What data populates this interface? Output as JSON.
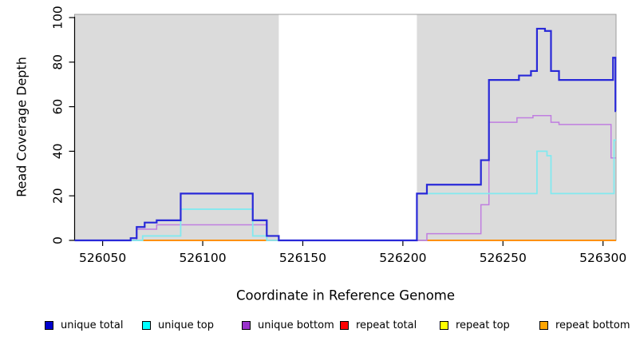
{
  "figure": {
    "background": "#ffffff"
  },
  "chart_data": {
    "type": "line",
    "step": true,
    "title": "",
    "xlabel": "Coordinate in Reference Genome",
    "ylabel": "Read Coverage Depth",
    "xlim": [
      526036,
      526306.5
    ],
    "ylim": [
      0,
      100
    ],
    "x_ticks": [
      526050,
      526100,
      526150,
      526200,
      526250,
      526300
    ],
    "y_ticks": [
      0,
      20,
      40,
      60,
      80,
      100
    ],
    "grid": false,
    "legend_position": "bottom",
    "axis_color": "#000000",
    "box_color": "#9c9c9c",
    "shaded_regions": [
      {
        "x0": 526036,
        "x1": 526138,
        "color": "#dbdbdb"
      },
      {
        "x0": 526207,
        "x1": 526306.5,
        "color": "#dbdbdb"
      }
    ],
    "series": [
      {
        "name": "unique total",
        "swatch": "#0000cd",
        "stroke": "#2828d8",
        "width": 2.2,
        "segments": [
          [
            [
              526036,
              0
            ],
            [
              526064,
              1
            ],
            [
              526067,
              6
            ],
            [
              526071,
              8
            ],
            [
              526077,
              9
            ],
            [
              526089,
              21
            ],
            [
              526125,
              9
            ],
            [
              526132,
              2
            ],
            [
              526138,
              0
            ],
            [
              526207,
              21
            ],
            [
              526212,
              25
            ],
            [
              526239,
              36
            ],
            [
              526243,
              72
            ],
            [
              526258,
              74
            ],
            [
              526264,
              76
            ],
            [
              526267,
              95
            ],
            [
              526271,
              94
            ],
            [
              526274,
              76
            ],
            [
              526278,
              72
            ],
            [
              526305,
              82
            ],
            [
              526306.2,
              58
            ],
            [
              526306.5,
              58
            ]
          ]
        ]
      },
      {
        "name": "unique top",
        "swatch": "#00ffff",
        "stroke": "#82e9ef",
        "width": 1.8,
        "segments": [
          [
            [
              526036,
              0
            ],
            [
              526070,
              2
            ],
            [
              526089,
              14
            ],
            [
              526125,
              2
            ],
            [
              526132,
              0
            ],
            [
              526207,
              21
            ],
            [
              526267,
              40
            ],
            [
              526272,
              38
            ],
            [
              526274,
              21
            ],
            [
              526305.5,
              45
            ],
            [
              526306.5,
              45
            ]
          ]
        ]
      },
      {
        "name": "unique bottom",
        "swatch": "#9932cc",
        "stroke": "#c07ee0",
        "width": 1.5,
        "segments": [
          [
            [
              526036,
              0
            ],
            [
              526067,
              5
            ],
            [
              526077,
              7
            ],
            [
              526132,
              0
            ],
            [
              526212,
              3
            ],
            [
              526239,
              16
            ],
            [
              526243,
              53
            ],
            [
              526257,
              55
            ],
            [
              526265,
              56
            ],
            [
              526274,
              53
            ],
            [
              526278,
              52
            ],
            [
              526304,
              37
            ],
            [
              526306.5,
              37
            ]
          ]
        ]
      },
      {
        "name": "repeat total",
        "swatch": "#ff0000",
        "stroke": "#ff0000",
        "width": 1.5,
        "segments": [
          [
            [
              526070,
              0
            ],
            [
              526138,
              0
            ]
          ],
          [
            [
              526212,
              0
            ],
            [
              526306.5,
              0
            ]
          ]
        ]
      },
      {
        "name": "repeat top",
        "swatch": "#ffff00",
        "stroke": "#ffff00",
        "width": 1.5,
        "segments": [
          [
            [
              526070,
              0
            ],
            [
              526138,
              0
            ]
          ],
          [
            [
              526212,
              0
            ],
            [
              526306.5,
              0
            ]
          ]
        ]
      },
      {
        "name": "repeat bottom",
        "swatch": "#ffa500",
        "stroke": "#ff8c00",
        "width": 1.8,
        "segments": [
          [
            [
              526070,
              0
            ],
            [
              526138,
              0
            ]
          ],
          [
            [
              526212,
              0
            ],
            [
              526306.5,
              0
            ]
          ]
        ]
      }
    ],
    "draw_order": [
      "repeat total",
      "repeat top",
      "repeat bottom",
      "unique bottom",
      "unique top",
      "unique total"
    ]
  }
}
